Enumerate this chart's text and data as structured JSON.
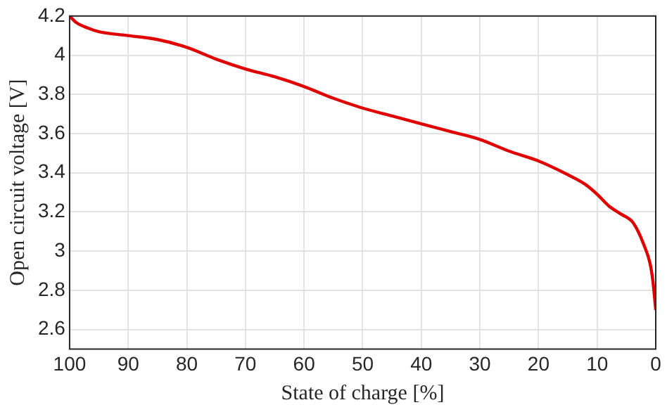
{
  "chart_data": {
    "type": "line",
    "xlabel": "State of charge [%]",
    "ylabel": "Open circuit voltage [V]",
    "x": [
      100,
      99,
      97,
      95,
      90,
      85,
      80,
      75,
      70,
      65,
      60,
      55,
      50,
      45,
      40,
      35,
      30,
      25,
      20,
      15,
      12,
      10,
      8,
      6,
      4,
      3,
      2,
      1,
      0.5,
      0
    ],
    "series": [
      {
        "color": "#e00000",
        "values": [
          4.2,
          4.17,
          4.14,
          4.12,
          4.1,
          4.08,
          4.04,
          3.98,
          3.93,
          3.89,
          3.84,
          3.78,
          3.73,
          3.69,
          3.65,
          3.61,
          3.57,
          3.51,
          3.46,
          3.39,
          3.34,
          3.29,
          3.23,
          3.19,
          3.15,
          3.1,
          3.03,
          2.94,
          2.85,
          2.7
        ]
      }
    ],
    "xlim": [
      100,
      0
    ],
    "xticks": [
      100,
      90,
      80,
      70,
      60,
      50,
      40,
      30,
      20,
      10,
      0
    ],
    "ylim": [
      2.5,
      4.2
    ],
    "yticks": [
      2.6,
      2.8,
      3,
      3.2,
      3.4,
      3.6,
      3.8,
      4,
      4.2
    ],
    "grid": true,
    "legend": false,
    "marker": "none",
    "line_style": "solid"
  }
}
